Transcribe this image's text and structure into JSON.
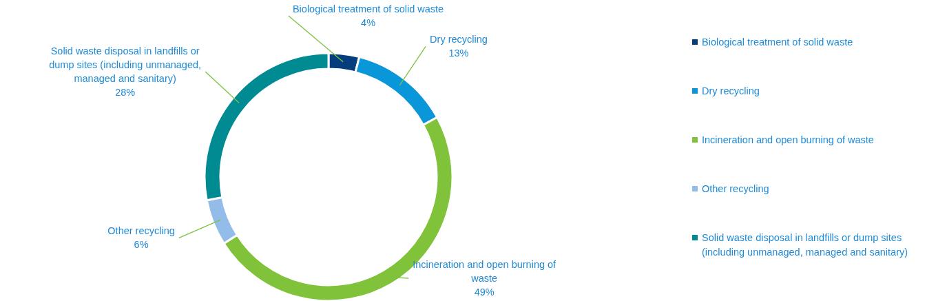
{
  "chart_data": {
    "type": "donut",
    "categories": [
      "Biological treatment of solid waste",
      "Dry recycling",
      "Incineration and open burning of waste",
      "Other recycling",
      "Solid waste disposal in landfills or dump sites (including unmanaged, managed and sanitary)"
    ],
    "values": [
      4,
      13,
      49,
      6,
      28
    ],
    "colors": [
      "#063d7c",
      "#0a97da",
      "#80c23a",
      "#93bce8",
      "#008b93"
    ],
    "value_labels": [
      "4%",
      "13%",
      "49%",
      "6%",
      "28%"
    ],
    "legend": "right"
  }
}
